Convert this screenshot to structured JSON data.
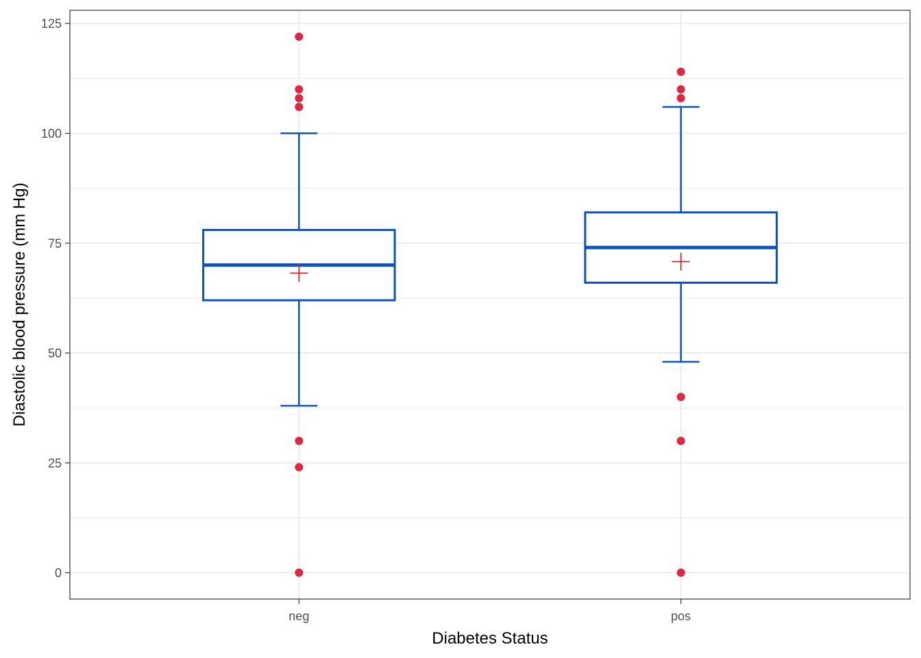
{
  "chart_data": {
    "type": "box",
    "xlabel": "Diabetes Status",
    "ylabel": "Diastolic blood pressure (mm Hg)",
    "ylim": [
      -6,
      128
    ],
    "yticks": [
      0,
      25,
      50,
      75,
      100,
      125
    ],
    "yticks_minor": [
      12.5,
      37.5,
      62.5,
      87.5,
      112.5
    ],
    "grid": true,
    "categories": [
      "neg",
      "pos"
    ],
    "boxes": [
      {
        "category": "neg",
        "q1": 62,
        "median": 70,
        "q3": 78,
        "whisker_low": 38,
        "whisker_high": 100,
        "mean": 68.2,
        "outliers": [
          122,
          110,
          108,
          106,
          30,
          24,
          0
        ]
      },
      {
        "category": "pos",
        "q1": 66,
        "median": 74,
        "q3": 82,
        "whisker_low": 48,
        "whisker_high": 106,
        "mean": 70.8,
        "outliers": [
          114,
          110,
          108,
          40,
          30,
          0
        ]
      }
    ],
    "colors": {
      "box": "#0d52bd",
      "outlier": "#dc2840",
      "mean_marker": "#ff0000",
      "grid": "#ebebeb",
      "panel_border": "#333333"
    }
  }
}
